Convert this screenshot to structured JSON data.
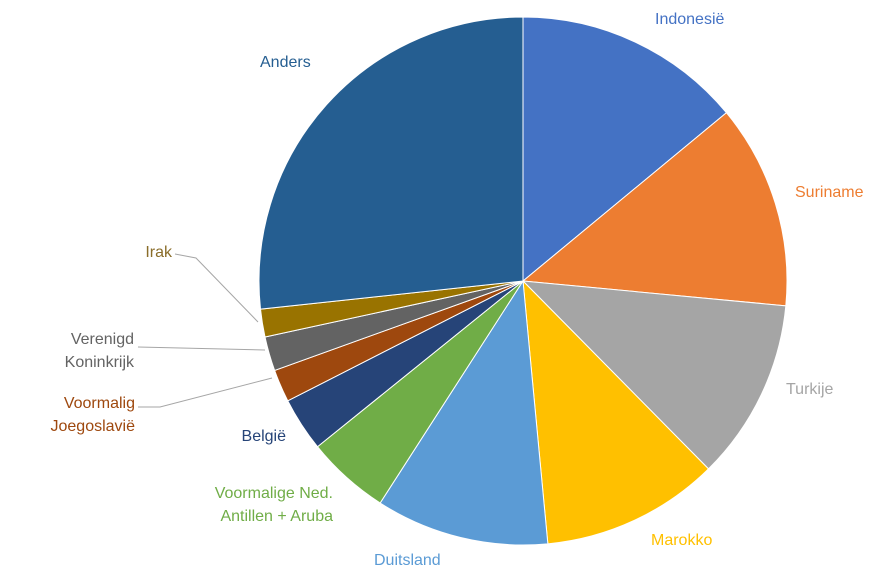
{
  "chart_data": {
    "type": "pie",
    "categories": [
      "Indonesië",
      "Suriname",
      "Turkije",
      "Marokko",
      "Duitsland",
      "Voormalige Ned. Antillen + Aruba",
      "België",
      "Voormalig Joegoslavië",
      "Verenigd Koninkrijk",
      "Irak",
      "Anders"
    ],
    "values": [
      14.0,
      12.5,
      11.1,
      10.9,
      10.6,
      5.1,
      3.3,
      2.0,
      2.1,
      1.7,
      26.7
    ],
    "colors": [
      "#4472c4",
      "#ed7d31",
      "#a5a5a5",
      "#ffc000",
      "#5b9bd5",
      "#70ad47",
      "#264478",
      "#9e480e",
      "#636363",
      "#997300",
      "#255e91"
    ],
    "label_colors": [
      "#4472c4",
      "#ed7d31",
      "#a5a5a5",
      "#ffc000",
      "#5b9bd5",
      "#70ad47",
      "#264478",
      "#9e480e",
      "#636363",
      "#8a6d2a",
      "#255e91"
    ]
  }
}
